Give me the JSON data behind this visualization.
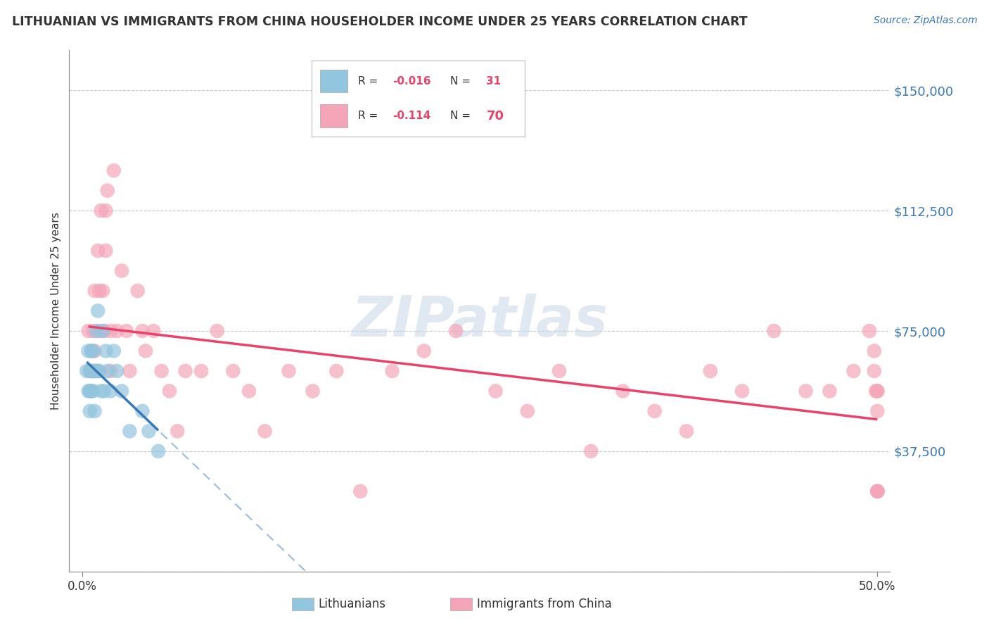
{
  "title": "LITHUANIAN VS IMMIGRANTS FROM CHINA HOUSEHOLDER INCOME UNDER 25 YEARS CORRELATION CHART",
  "source": "Source: ZipAtlas.com",
  "ylabel": "Householder Income Under 25 years",
  "yticks": [
    0,
    37500,
    75000,
    112500,
    150000
  ],
  "ytick_labels": [
    "",
    "$37,500",
    "$75,000",
    "$112,500",
    "$150,000"
  ],
  "xtick_labels": [
    "0.0%",
    "50.0%"
  ],
  "label1": "Lithuanians",
  "label2": "Immigrants from China",
  "color1": "#92c5de",
  "color2": "#f4a6b8",
  "line_color1": "#3a78b5",
  "line_color2": "#e8436a",
  "watermark": "ZIPatlas",
  "background_color": "#ffffff",
  "grid_color": "#c8c8c8",
  "lit_x": [
    0.003,
    0.004,
    0.004,
    0.005,
    0.005,
    0.005,
    0.006,
    0.006,
    0.006,
    0.007,
    0.007,
    0.008,
    0.008,
    0.009,
    0.009,
    0.01,
    0.01,
    0.011,
    0.012,
    0.013,
    0.014,
    0.015,
    0.016,
    0.018,
    0.02,
    0.022,
    0.025,
    0.03,
    0.038,
    0.042,
    0.048
  ],
  "lit_y": [
    62500,
    56250,
    68750,
    62500,
    56250,
    50000,
    68750,
    62500,
    56250,
    68750,
    56250,
    62500,
    50000,
    75000,
    62500,
    81250,
    62500,
    62500,
    56250,
    75000,
    56250,
    68750,
    62500,
    56250,
    68750,
    62500,
    56250,
    43750,
    50000,
    43750,
    37500
  ],
  "chi_x": [
    0.004,
    0.005,
    0.005,
    0.006,
    0.006,
    0.007,
    0.007,
    0.008,
    0.008,
    0.009,
    0.01,
    0.01,
    0.011,
    0.012,
    0.013,
    0.014,
    0.015,
    0.015,
    0.016,
    0.018,
    0.018,
    0.02,
    0.022,
    0.025,
    0.028,
    0.03,
    0.035,
    0.038,
    0.04,
    0.045,
    0.05,
    0.055,
    0.06,
    0.065,
    0.075,
    0.085,
    0.095,
    0.105,
    0.115,
    0.13,
    0.145,
    0.16,
    0.175,
    0.195,
    0.215,
    0.235,
    0.26,
    0.28,
    0.3,
    0.32,
    0.34,
    0.36,
    0.38,
    0.395,
    0.415,
    0.435,
    0.455,
    0.47,
    0.485,
    0.495,
    0.498,
    0.498,
    0.499,
    0.5,
    0.5,
    0.5,
    0.5,
    0.5,
    0.5,
    0.5
  ],
  "chi_y": [
    75000,
    62500,
    56250,
    68750,
    62500,
    75000,
    62500,
    87500,
    68750,
    62500,
    100000,
    75000,
    87500,
    112500,
    87500,
    75000,
    100000,
    112500,
    118750,
    75000,
    62500,
    125000,
    75000,
    93750,
    75000,
    62500,
    87500,
    75000,
    68750,
    75000,
    62500,
    56250,
    43750,
    62500,
    62500,
    75000,
    62500,
    56250,
    43750,
    62500,
    56250,
    62500,
    25000,
    62500,
    68750,
    75000,
    56250,
    50000,
    62500,
    37500,
    56250,
    50000,
    43750,
    62500,
    56250,
    75000,
    56250,
    56250,
    62500,
    75000,
    68750,
    62500,
    56250,
    56250,
    50000,
    25000,
    25000,
    25000,
    25000,
    56250
  ]
}
